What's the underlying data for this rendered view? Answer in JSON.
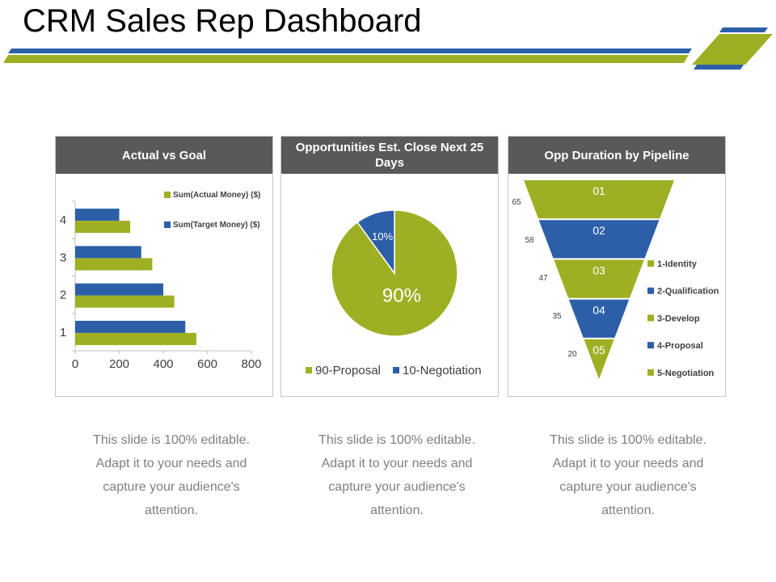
{
  "page": {
    "title": "CRM Sales Rep Dashboard"
  },
  "colors": {
    "green": "#9faf24",
    "blue": "#2c5fa8",
    "header": "#595959",
    "caption": "#7f7f7f"
  },
  "chart_data": [
    {
      "type": "bar",
      "title": "Actual vs Goal",
      "orientation": "horizontal",
      "categories": [
        "1",
        "2",
        "3",
        "4"
      ],
      "series": [
        {
          "name": "Sum(Actual Money) ($)",
          "values": [
            550,
            450,
            350,
            250
          ]
        },
        {
          "name": "Sum(Target Money) ($)",
          "values": [
            500,
            400,
            300,
            200
          ]
        }
      ],
      "xlim": [
        0,
        800
      ],
      "xticks": [
        "0",
        "200",
        "400",
        "600",
        "800"
      ],
      "legend": "top-right"
    },
    {
      "type": "pie",
      "title": "Opportunities Est. Close Next 25 Days",
      "slices": [
        {
          "name": "90-Proposal",
          "value": 90,
          "label": "90%"
        },
        {
          "name": "10-Negotiation",
          "value": 10,
          "label": "10%"
        }
      ],
      "legend": "bottom"
    },
    {
      "type": "funnel",
      "title": "Opp Duration by Pipeline",
      "stages": [
        {
          "label": "01",
          "name": "1-Identity",
          "value": 65
        },
        {
          "label": "02",
          "name": "2-Qualification",
          "value": 58
        },
        {
          "label": "03",
          "name": "3-Develop",
          "value": 47
        },
        {
          "label": "04",
          "name": "4-Proposal",
          "value": 35
        },
        {
          "label": "05",
          "name": "5-Negotiation",
          "value": 20
        }
      ],
      "legend": "right"
    }
  ],
  "captions": [
    {
      "line1": "This slide is 100% editable.",
      "line2": "Adapt it to your needs and",
      "line3": "capture your audience's",
      "line4": "attention."
    },
    {
      "line1": "This slide is 100% editable.",
      "line2": "Adapt it to your needs and",
      "line3": "capture your audience's",
      "line4": "attention."
    },
    {
      "line1": "This slide is 100% editable.",
      "line2": "Adapt it to your needs and",
      "line3": "capture your audience's",
      "line4": "attention."
    }
  ]
}
